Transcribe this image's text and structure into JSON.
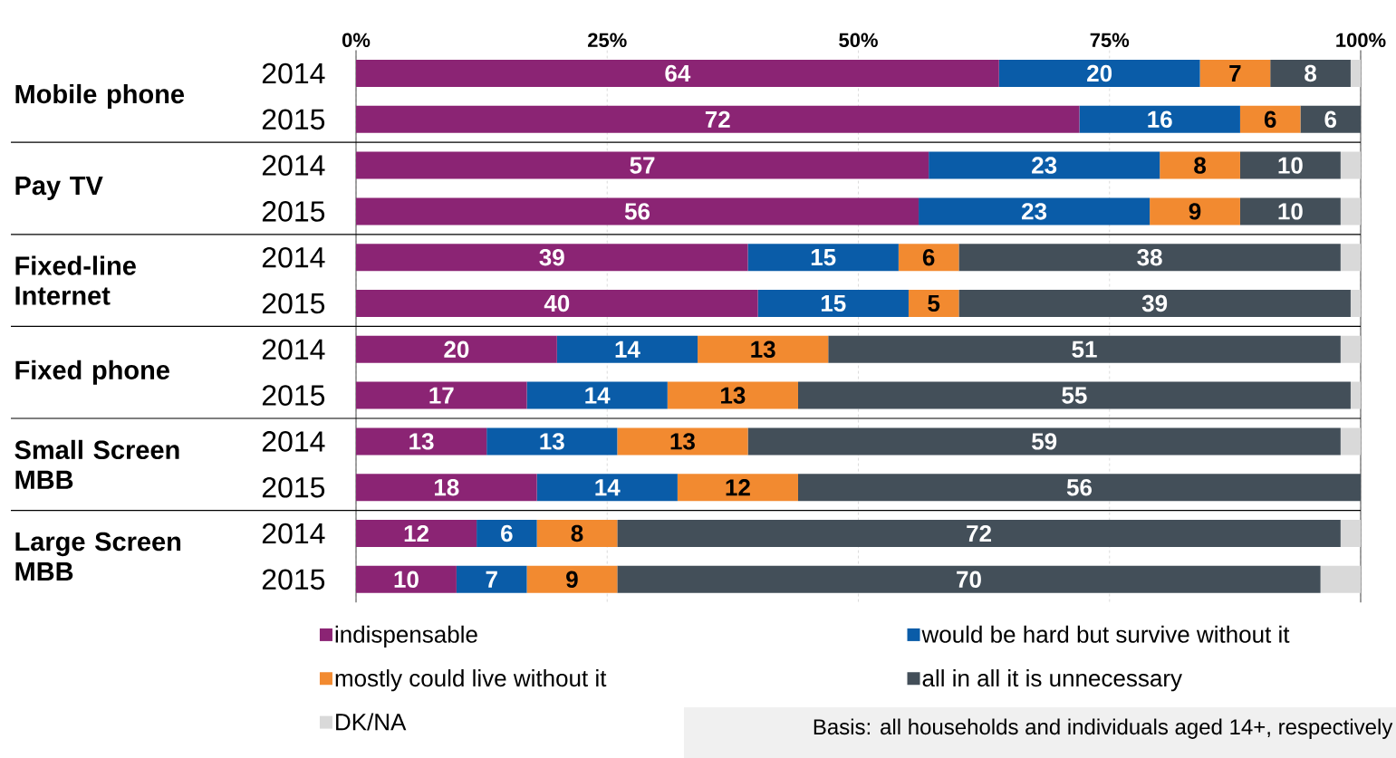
{
  "chart_data": {
    "type": "bar",
    "orientation": "horizontal",
    "stacked": true,
    "categories": [
      "2014",
      "2015",
      "2014",
      "2015",
      "2014",
      "2015",
      "2014",
      "2015",
      "2014",
      "2015",
      "2014",
      "2015"
    ],
    "series": [
      {
        "name": "indispensable",
        "color": "#8b2474",
        "values": [
          64,
          72,
          57,
          56,
          39,
          40,
          20,
          17,
          13,
          18,
          12,
          10
        ],
        "value_labels": [
          "64",
          "72",
          "57",
          "56",
          "39",
          "40",
          "20",
          "17",
          "13",
          "18",
          "12",
          "10"
        ]
      },
      {
        "name": "would be hard but survive without it",
        "color": "#0a5ca8",
        "values": [
          20,
          16,
          23,
          23,
          15,
          15,
          14,
          14,
          13,
          14,
          6,
          7
        ],
        "value_labels": [
          "20",
          "16",
          "23",
          "23",
          "15",
          "15",
          "14",
          "14",
          "13",
          "14",
          "6",
          "7"
        ]
      },
      {
        "name": "mostly could live without it",
        "color": "#f28a30",
        "values": [
          7,
          6,
          8,
          9,
          6,
          5,
          13,
          13,
          13,
          12,
          8,
          9
        ],
        "value_labels": [
          "7",
          "6",
          "8",
          "9",
          "6",
          "5",
          "13",
          "13",
          "13",
          "12",
          "8",
          "9"
        ]
      },
      {
        "name": "all in all it is unnecessary",
        "color": "#434f59",
        "values": [
          8,
          6,
          10,
          10,
          38,
          39,
          51,
          55,
          59,
          56,
          72,
          70
        ],
        "value_labels": [
          "8",
          "6",
          "10",
          "10",
          "38",
          "39",
          "51",
          "55",
          "59",
          "56",
          "72",
          "70"
        ]
      },
      {
        "name": "DK/NA",
        "color": "#d9d9d9",
        "values": [
          1,
          0,
          2,
          2,
          2,
          1,
          2,
          1,
          2,
          0,
          2,
          4
        ]
      }
    ],
    "xlim": [
      0,
      100
    ],
    "xticks": [
      {
        "value": 0,
        "label": "0%"
      },
      {
        "value": 25,
        "label": "25%"
      },
      {
        "value": 50,
        "label": "50%"
      },
      {
        "value": 75,
        "label": "75%"
      },
      {
        "value": 100,
        "label": "100%"
      }
    ],
    "grid": "x",
    "legend": "bottom",
    "annotations": [
      "Mobile phone",
      "Pay TV",
      "Fixed-line Internet",
      "Fixed phone",
      "Small Screen MBB",
      "Large Screen MBB",
      "Basis: all households and individuals aged 14+, respectively"
    ]
  }
}
